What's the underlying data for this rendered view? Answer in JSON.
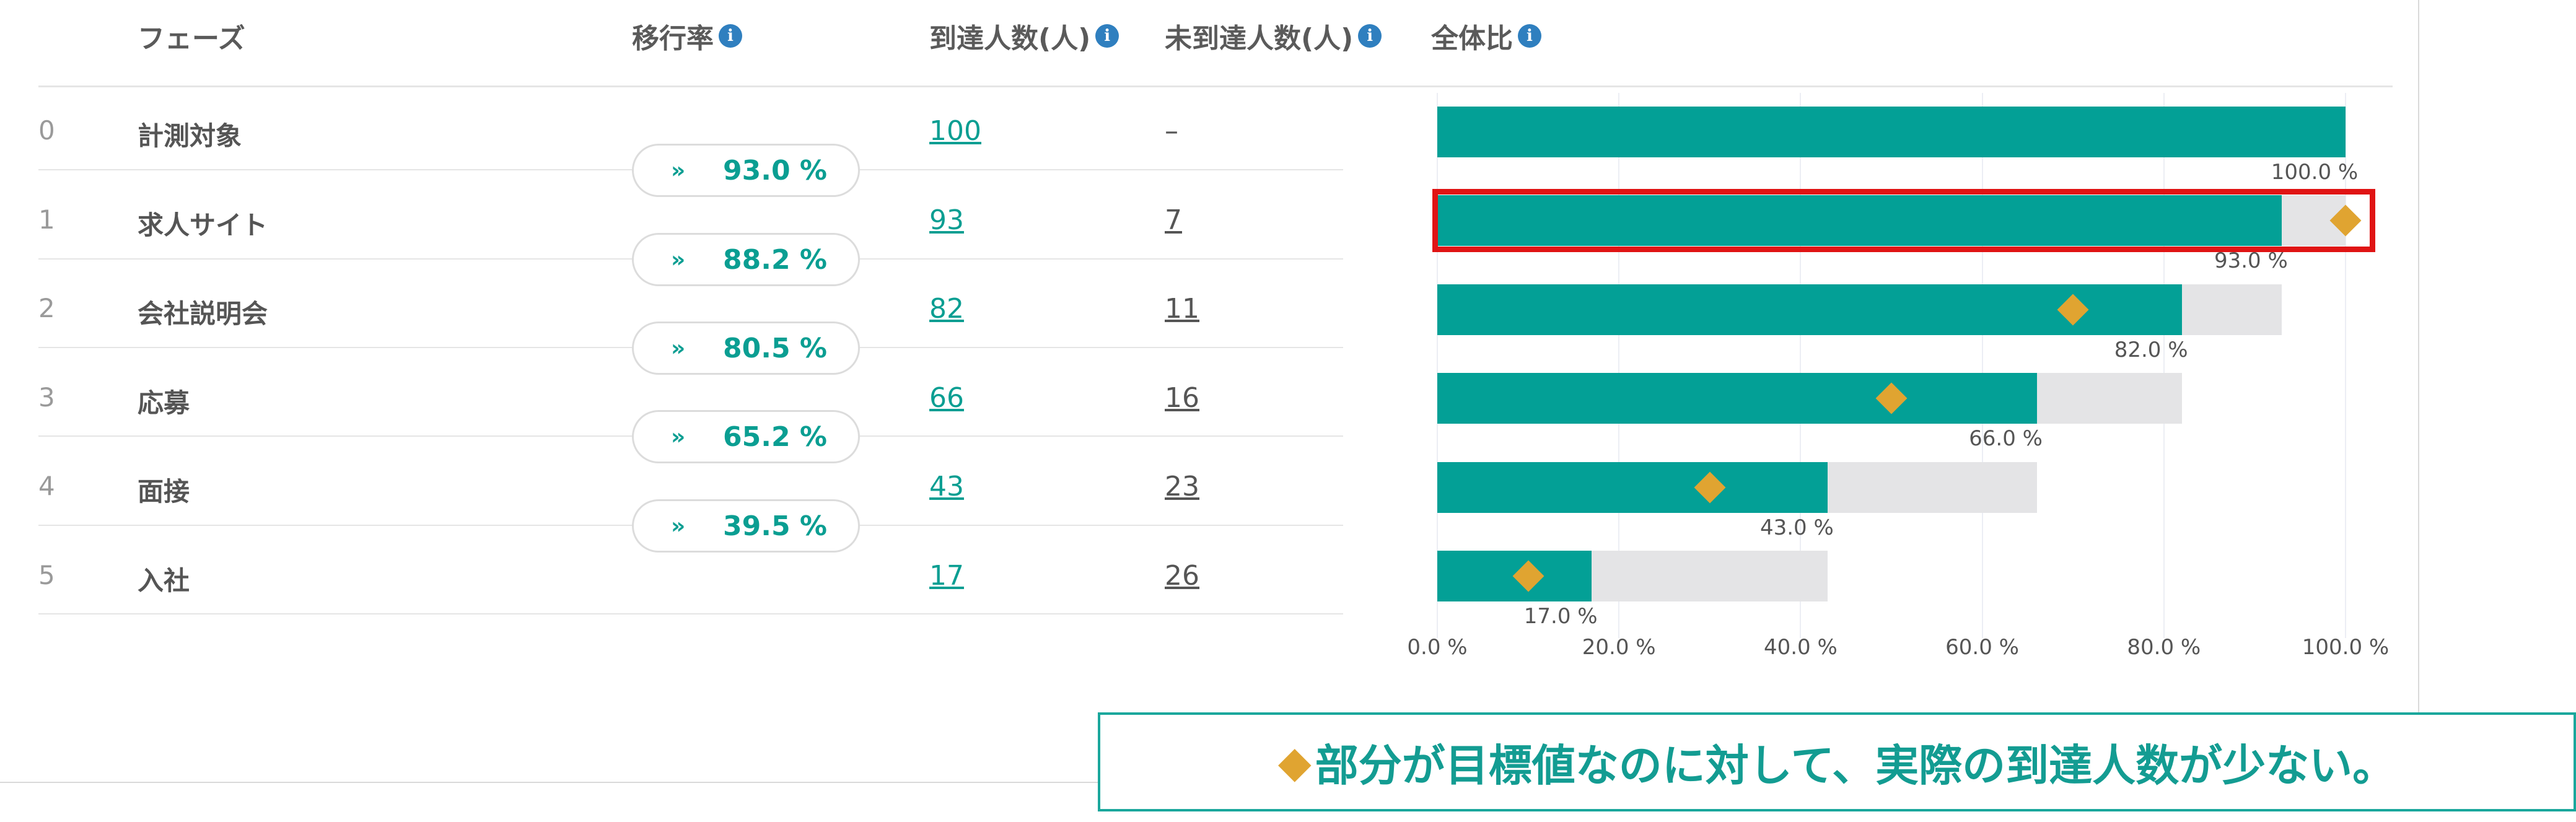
{
  "headers": {
    "phase": "フェーズ",
    "transition_rate": "移行率",
    "reached": "到達人数(人)",
    "not_reached": "未到達人数(人)",
    "overall_ratio": "全体比"
  },
  "rows": [
    {
      "num": "0",
      "phase": "計測対象",
      "reached": "100",
      "not_reached": "–"
    },
    {
      "num": "1",
      "phase": "求人サイト",
      "reached": "93",
      "not_reached": "7"
    },
    {
      "num": "2",
      "phase": "会社説明会",
      "reached": "82",
      "not_reached": "11"
    },
    {
      "num": "3",
      "phase": "応募",
      "reached": "66",
      "not_reached": "16"
    },
    {
      "num": "4",
      "phase": "面接",
      "reached": "43",
      "not_reached": "23"
    },
    {
      "num": "5",
      "phase": "入社",
      "reached": "17",
      "not_reached": "26"
    }
  ],
  "transitions": [
    {
      "icon": "double-chevron-down-icon",
      "rate": "93.0 %"
    },
    {
      "icon": "double-chevron-down-icon",
      "rate": "88.2 %"
    },
    {
      "icon": "double-chevron-down-icon",
      "rate": "80.5 %"
    },
    {
      "icon": "double-chevron-down-icon",
      "rate": "65.2 %"
    },
    {
      "icon": "double-chevron-down-icon",
      "rate": "39.5 %"
    }
  ],
  "chart_data": {
    "type": "bar",
    "orientation": "horizontal",
    "categories": [
      "計測対象",
      "求人サイト",
      "会社説明会",
      "応募",
      "面接",
      "入社"
    ],
    "values": [
      100.0,
      93.0,
      82.0,
      66.0,
      43.0,
      17.0
    ],
    "previous_stage_values": [
      100.0,
      100.0,
      93.0,
      82.0,
      66.0,
      43.0
    ],
    "target_values": [
      null,
      100.0,
      70.0,
      50.0,
      30.0,
      10.0
    ],
    "value_labels": [
      "100.0 %",
      "93.0 %",
      "82.0 %",
      "66.0 %",
      "43.0 %",
      "17.0 %"
    ],
    "xlim": [
      0,
      100
    ],
    "xticks": [
      "0.0 %",
      "20.0 %",
      "40.0 %",
      "60.0 %",
      "80.0 %",
      "100.0 %"
    ],
    "grid": true,
    "highlighted_row": 1,
    "colors": {
      "bar": "#03a096",
      "background_bar": "#e4e4e6",
      "target_marker": "#e0a431",
      "highlight": "#e01414"
    }
  },
  "callout": {
    "symbol": "◆",
    "text": "部分が目標値なのに対して、実際の到達人数が少ない。"
  }
}
